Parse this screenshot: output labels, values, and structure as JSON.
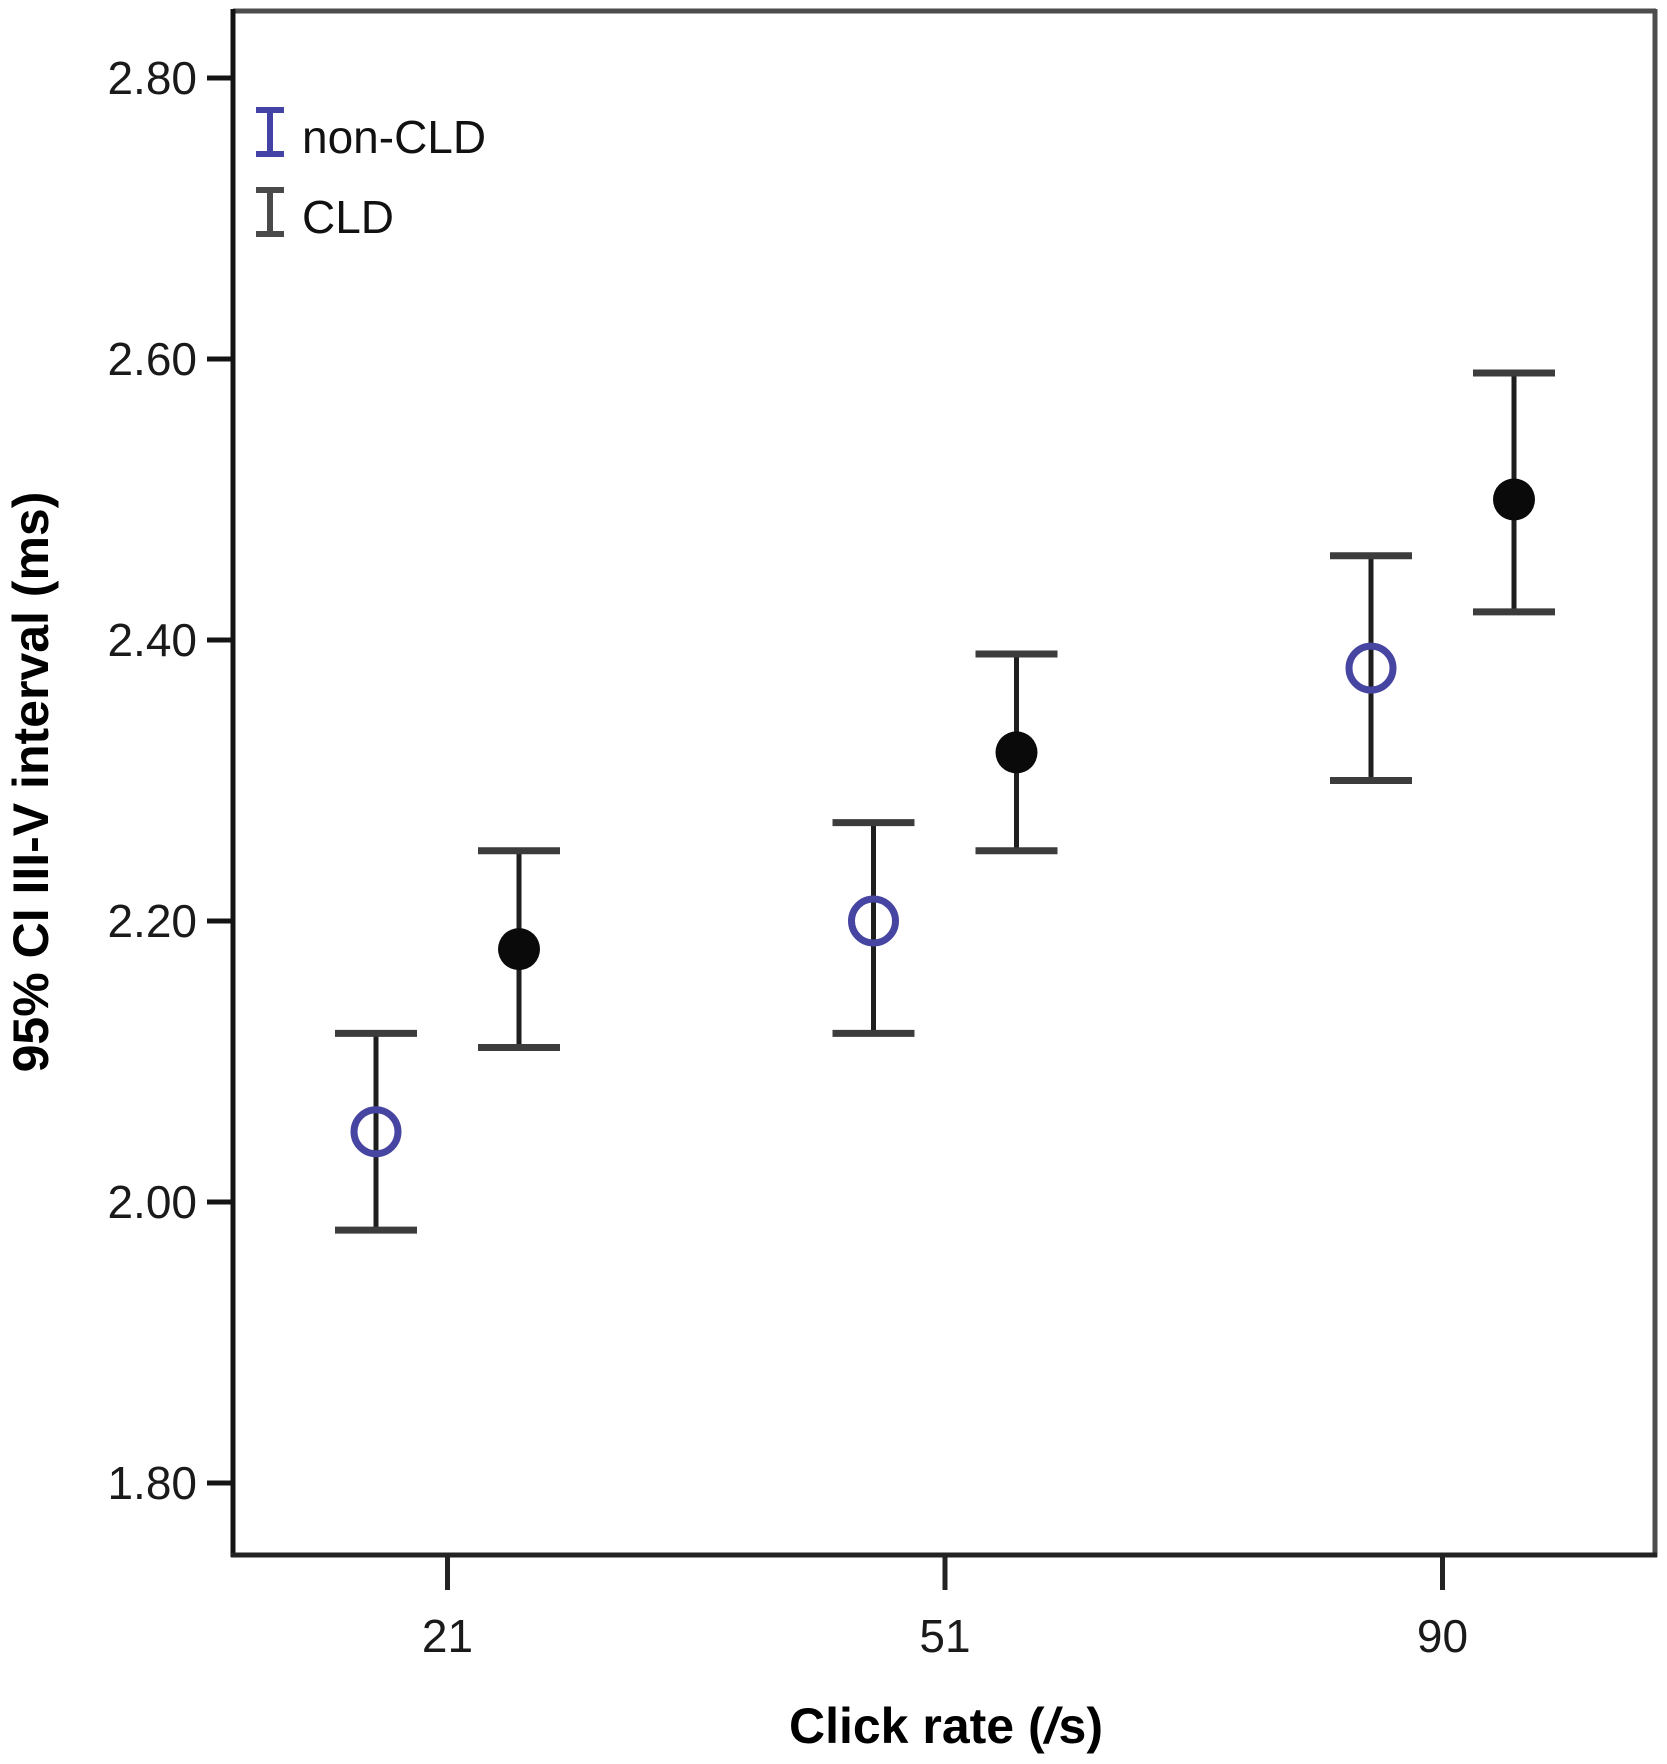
{
  "figure": {
    "xlabel_parts": {
      "prefix": "Click rate (",
      "italic": "/",
      "suffix": "s)"
    }
  },
  "chart_data": {
    "type": "errorbar",
    "title": "",
    "xlabel": "Click rate (/s)",
    "ylabel": "95% CI III-V interval (ms)",
    "categories": [
      "21",
      "51",
      "90"
    ],
    "yticks": [
      2.8,
      2.6,
      2.4,
      2.2,
      2.0,
      1.8
    ],
    "ytick_labels": [
      "2.80",
      "2.60",
      "2.40",
      "2.20",
      "2.00",
      "1.80"
    ],
    "ylim": [
      1.745,
      2.853
    ],
    "grid": false,
    "legend_position": "top-left-inside",
    "legend": [
      {
        "label": "non-CLD",
        "symbol": "error-bar",
        "color": "#4343a5"
      },
      {
        "label": "CLD",
        "symbol": "error-bar",
        "color": "#4a4a4a"
      }
    ],
    "series": [
      {
        "name": "non-CLD",
        "marker": "open-circle",
        "marker_color": "#4646a2",
        "line_color": "#1e1e1e",
        "means": [
          2.05,
          2.2,
          2.38
        ],
        "ci_low": [
          1.98,
          2.12,
          2.3
        ],
        "ci_high": [
          2.12,
          2.27,
          2.46
        ]
      },
      {
        "name": "CLD",
        "marker": "filled-circle",
        "marker_color": "#0a0a0a",
        "line_color": "#1e1e1e",
        "means": [
          2.18,
          2.32,
          2.5
        ],
        "ci_low": [
          2.11,
          2.25,
          2.42
        ],
        "ci_high": [
          2.25,
          2.39,
          2.59
        ]
      }
    ]
  }
}
